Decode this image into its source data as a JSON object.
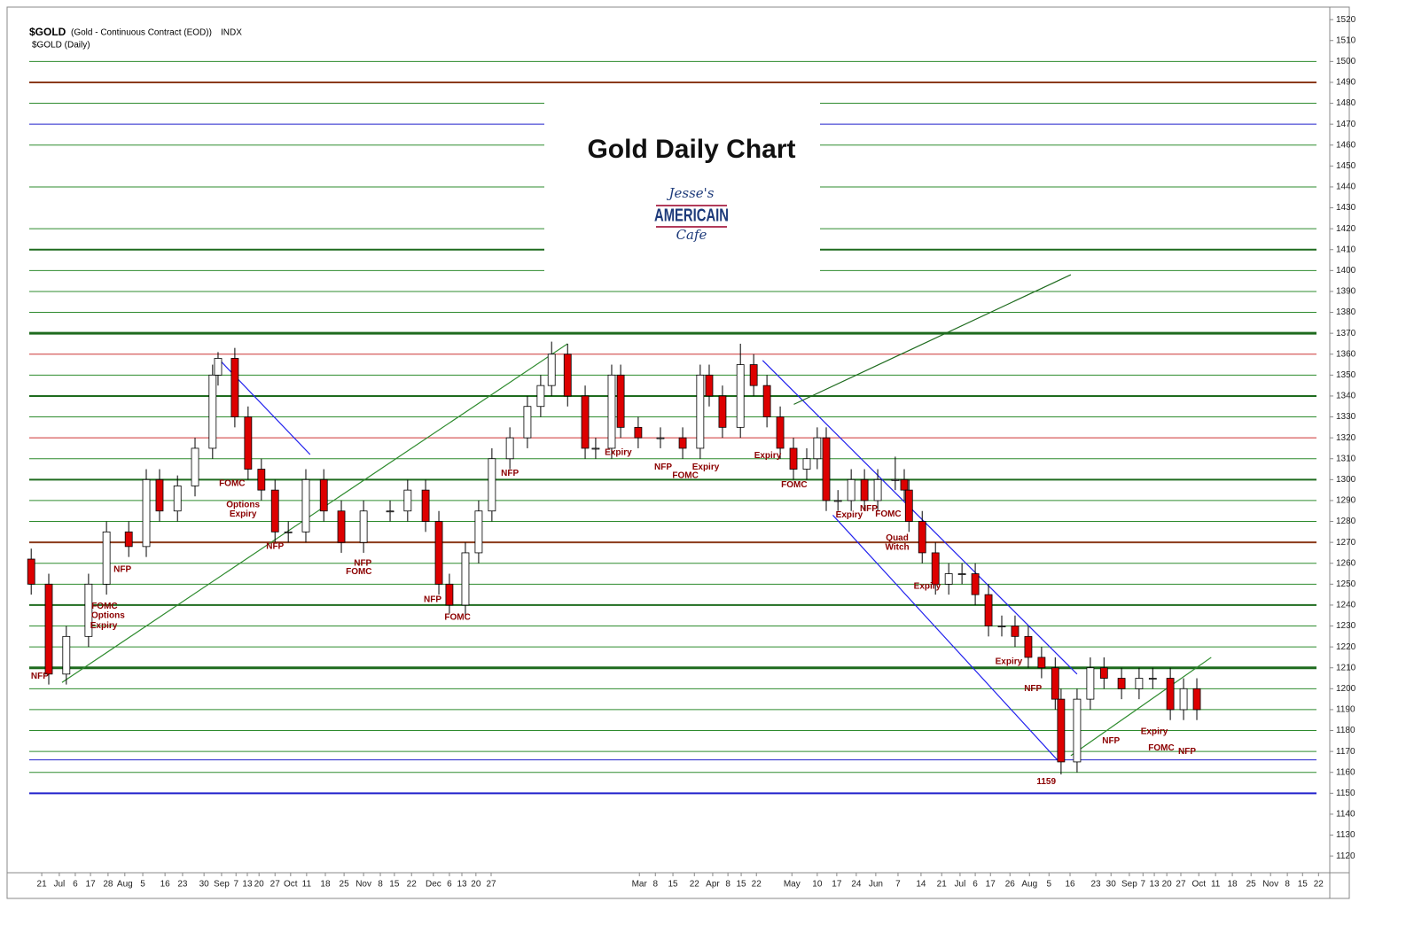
{
  "chart_data": {
    "type": "candlestick",
    "symbol": "$GOLD",
    "description": "(Gold - Continuous Contract (EOD))",
    "exchange": "INDX",
    "subtitle": "$GOLD (Daily)",
    "title": "Gold Daily Chart",
    "logo": {
      "top": "Jesse's",
      "middle": "AMERICAIN",
      "bottom": "Cafe"
    },
    "up_color": "#ffffff",
    "down_color": "#dd0000",
    "xlim": [
      0,
      332.7
    ],
    "ylim": [
      1112,
      1526
    ],
    "yticks": [
      1120,
      1130,
      1140,
      1150,
      1160,
      1170,
      1180,
      1190,
      1200,
      1210,
      1220,
      1230,
      1240,
      1250,
      1260,
      1270,
      1280,
      1290,
      1300,
      1310,
      1320,
      1330,
      1340,
      1350,
      1360,
      1370,
      1380,
      1390,
      1400,
      1410,
      1420,
      1430,
      1440,
      1450,
      1460,
      1470,
      1480,
      1490,
      1500,
      1510,
      1520
    ],
    "xticks": [
      {
        "value": 3.2,
        "label": "21"
      },
      {
        "value": 7.7,
        "label": "Jul"
      },
      {
        "value": 11.8,
        "label": "6"
      },
      {
        "value": 15.7,
        "label": "17"
      },
      {
        "value": 20.2,
        "label": "28"
      },
      {
        "value": 24.5,
        "label": "Aug"
      },
      {
        "value": 29.1,
        "label": "5"
      },
      {
        "value": 34.8,
        "label": "16"
      },
      {
        "value": 39.3,
        "label": "23"
      },
      {
        "value": 44.8,
        "label": "30"
      },
      {
        "value": 49.3,
        "label": "Sep"
      },
      {
        "value": 53,
        "label": "7"
      },
      {
        "value": 55.9,
        "label": "13"
      },
      {
        "value": 58.9,
        "label": "20"
      },
      {
        "value": 63,
        "label": "27"
      },
      {
        "value": 67,
        "label": "Oct"
      },
      {
        "value": 71.1,
        "label": "11"
      },
      {
        "value": 75.9,
        "label": "18"
      },
      {
        "value": 80.7,
        "label": "25"
      },
      {
        "value": 85.7,
        "label": "Nov"
      },
      {
        "value": 90,
        "label": "8"
      },
      {
        "value": 93.6,
        "label": "15"
      },
      {
        "value": 98,
        "label": "22"
      },
      {
        "value": 103.6,
        "label": "Dec"
      },
      {
        "value": 107.7,
        "label": "6"
      },
      {
        "value": 110.9,
        "label": "13"
      },
      {
        "value": 114.5,
        "label": "20"
      },
      {
        "value": 118.4,
        "label": "27"
      },
      {
        "value": 156.4,
        "label": "Mar"
      },
      {
        "value": 160.5,
        "label": "8"
      },
      {
        "value": 165,
        "label": "15"
      },
      {
        "value": 170.5,
        "label": "22"
      },
      {
        "value": 175.2,
        "label": "Apr"
      },
      {
        "value": 179.1,
        "label": "8"
      },
      {
        "value": 182.5,
        "label": "15"
      },
      {
        "value": 186.4,
        "label": "22"
      },
      {
        "value": 195.5,
        "label": "May"
      },
      {
        "value": 202,
        "label": "10"
      },
      {
        "value": 207,
        "label": "17"
      },
      {
        "value": 212,
        "label": "24"
      },
      {
        "value": 217,
        "label": "Jun"
      },
      {
        "value": 222.7,
        "label": "7"
      },
      {
        "value": 228.6,
        "label": "14"
      },
      {
        "value": 233.9,
        "label": "21"
      },
      {
        "value": 238.6,
        "label": "Jul"
      },
      {
        "value": 242.5,
        "label": "6"
      },
      {
        "value": 246.4,
        "label": "17"
      },
      {
        "value": 251.4,
        "label": "26"
      },
      {
        "value": 256.4,
        "label": "Aug"
      },
      {
        "value": 261.4,
        "label": "5"
      },
      {
        "value": 266.8,
        "label": "16"
      },
      {
        "value": 273.4,
        "label": "23"
      },
      {
        "value": 277.3,
        "label": "30"
      },
      {
        "value": 282,
        "label": "Sep"
      },
      {
        "value": 285.5,
        "label": "7"
      },
      {
        "value": 288.4,
        "label": "13"
      },
      {
        "value": 291.6,
        "label": "20"
      },
      {
        "value": 295.2,
        "label": "27"
      },
      {
        "value": 299.8,
        "label": "Oct"
      },
      {
        "value": 304.1,
        "label": "11"
      },
      {
        "value": 308.4,
        "label": "18"
      },
      {
        "value": 313.2,
        "label": "25"
      },
      {
        "value": 318.2,
        "label": "Nov"
      },
      {
        "value": 322.5,
        "label": "8"
      },
      {
        "value": 326.4,
        "label": "15"
      },
      {
        "value": 330.5,
        "label": "22"
      }
    ],
    "x": [
      0.5,
      5,
      9.5,
      15.2,
      19.8,
      25.5,
      30,
      33.4,
      38,
      42.5,
      47,
      48.4,
      52.7,
      56.1,
      59.5,
      63,
      66.4,
      70.9,
      75.5,
      80,
      85.7,
      92.5,
      97,
      101.6,
      105,
      107.7,
      111.8,
      115.2,
      118.6,
      123.2,
      127.7,
      131.1,
      133.9,
      138,
      142.5,
      145.2,
      149.3,
      151.6,
      156.1,
      161.8,
      167.5,
      172,
      174.3,
      177.7,
      182.3,
      185.7,
      189.1,
      192.5,
      195.9,
      199.3,
      202,
      204.3,
      207.3,
      210.7,
      214.1,
      217.5,
      222,
      224.3,
      225.5,
      228.9,
      232.3,
      235.7,
      239.1,
      242.5,
      245.9,
      249.3,
      252.7,
      256.1,
      259.5,
      263,
      264.5,
      268.6,
      272,
      275.5,
      280,
      284.5,
      288,
      292.5,
      295.9,
      299.3
    ],
    "open": [
      1262,
      1250,
      1207,
      1225,
      1250,
      1275,
      1268,
      1300,
      1285,
      1297,
      1315,
      1350,
      1358,
      1330,
      1305,
      1295,
      1275,
      1275,
      1300,
      1285,
      1270,
      1285,
      1285,
      1295,
      1280,
      1250,
      1240,
      1265,
      1285,
      1310,
      1320,
      1335,
      1345,
      1360,
      1340,
      1315,
      1315,
      1350,
      1325,
      1320,
      1320,
      1315,
      1350,
      1340,
      1325,
      1355,
      1345,
      1330,
      1315,
      1305,
      1310,
      1320,
      1290,
      1290,
      1300,
      1290,
      1300,
      1300,
      1295,
      1280,
      1265,
      1250,
      1255,
      1255,
      1245,
      1230,
      1230,
      1225,
      1215,
      1210,
      1195,
      1165,
      1195,
      1210,
      1205,
      1200,
      1205,
      1205,
      1190,
      1200
    ],
    "high": [
      1267,
      1255,
      1230,
      1255,
      1280,
      1280,
      1305,
      1305,
      1302,
      1320,
      1355,
      1361,
      1363,
      1335,
      1310,
      1300,
      1280,
      1305,
      1305,
      1290,
      1290,
      1290,
      1300,
      1300,
      1285,
      1255,
      1270,
      1290,
      1315,
      1325,
      1340,
      1350,
      1366,
      1365,
      1345,
      1320,
      1355,
      1355,
      1330,
      1325,
      1325,
      1355,
      1355,
      1345,
      1365,
      1360,
      1350,
      1335,
      1320,
      1315,
      1325,
      1325,
      1295,
      1305,
      1305,
      1305,
      1311,
      1305,
      1300,
      1285,
      1270,
      1260,
      1260,
      1260,
      1250,
      1235,
      1235,
      1230,
      1220,
      1215,
      1200,
      1200,
      1215,
      1215,
      1210,
      1210,
      1210,
      1210,
      1205,
      1205
    ],
    "low": [
      1245,
      1202,
      1202,
      1220,
      1245,
      1263,
      1263,
      1280,
      1280,
      1292,
      1310,
      1345,
      1325,
      1300,
      1290,
      1270,
      1270,
      1270,
      1280,
      1265,
      1265,
      1280,
      1280,
      1275,
      1245,
      1236,
      1235,
      1260,
      1280,
      1305,
      1315,
      1330,
      1340,
      1335,
      1310,
      1310,
      1310,
      1320,
      1315,
      1315,
      1310,
      1310,
      1335,
      1320,
      1320,
      1340,
      1325,
      1310,
      1300,
      1300,
      1305,
      1285,
      1285,
      1285,
      1285,
      1285,
      1295,
      1290,
      1275,
      1260,
      1245,
      1245,
      1250,
      1240,
      1225,
      1225,
      1220,
      1210,
      1205,
      1190,
      1159,
      1160,
      1190,
      1200,
      1195,
      1195,
      1200,
      1185,
      1185,
      1185
    ],
    "close": [
      1250,
      1207,
      1225,
      1250,
      1275,
      1268,
      1300,
      1285,
      1297,
      1315,
      1350,
      1358,
      1330,
      1305,
      1295,
      1275,
      1275,
      1300,
      1285,
      1270,
      1285,
      1285,
      1295,
      1280,
      1250,
      1240,
      1265,
      1285,
      1310,
      1320,
      1335,
      1345,
      1360,
      1340,
      1315,
      1315,
      1350,
      1325,
      1320,
      1320,
      1315,
      1350,
      1340,
      1325,
      1355,
      1345,
      1330,
      1315,
      1305,
      1310,
      1320,
      1290,
      1290,
      1300,
      1290,
      1300,
      1300,
      1295,
      1280,
      1265,
      1250,
      1255,
      1255,
      1245,
      1230,
      1230,
      1225,
      1215,
      1210,
      1195,
      1165,
      1195,
      1210,
      1205,
      1200,
      1205,
      1205,
      1190,
      1200,
      1190
    ],
    "levels": [
      {
        "value": 1500,
        "color": "#2e8b2e",
        "width": 1
      },
      {
        "value": 1490,
        "color": "#8b3a1a",
        "width": 2
      },
      {
        "value": 1480,
        "color": "#2e8b2e",
        "width": 1
      },
      {
        "value": 1470,
        "color": "#2222cc",
        "width": 1
      },
      {
        "value": 1460,
        "color": "#2e8b2e",
        "width": 1
      },
      {
        "value": 1440,
        "color": "#2e8b2e",
        "width": 1
      },
      {
        "value": 1420,
        "color": "#2e8b2e",
        "width": 1
      },
      {
        "value": 1410,
        "color": "#1e6b1e",
        "width": 2
      },
      {
        "value": 1400,
        "color": "#2e8b2e",
        "width": 1
      },
      {
        "value": 1390,
        "color": "#2e8b2e",
        "width": 1
      },
      {
        "value": 1380,
        "color": "#2e8b2e",
        "width": 1
      },
      {
        "value": 1370,
        "color": "#1e6b1e",
        "width": 3
      },
      {
        "value": 1360,
        "color": "#cc3333",
        "width": 1
      },
      {
        "value": 1350,
        "color": "#2e8b2e",
        "width": 1
      },
      {
        "value": 1340,
        "color": "#1e6b1e",
        "width": 2
      },
      {
        "value": 1330,
        "color": "#2e8b2e",
        "width": 1
      },
      {
        "value": 1320,
        "color": "#cc3333",
        "width": 1
      },
      {
        "value": 1310,
        "color": "#2e8b2e",
        "width": 1
      },
      {
        "value": 1300,
        "color": "#1e6b1e",
        "width": 2
      },
      {
        "value": 1290,
        "color": "#2e8b2e",
        "width": 1
      },
      {
        "value": 1280,
        "color": "#2e8b2e",
        "width": 1
      },
      {
        "value": 1270,
        "color": "#8b3a1a",
        "width": 2
      },
      {
        "value": 1260,
        "color": "#2e8b2e",
        "width": 1
      },
      {
        "value": 1250,
        "color": "#2e8b2e",
        "width": 1
      },
      {
        "value": 1240,
        "color": "#1e6b1e",
        "width": 2
      },
      {
        "value": 1230,
        "color": "#2e8b2e",
        "width": 1
      },
      {
        "value": 1220,
        "color": "#2e8b2e",
        "width": 1
      },
      {
        "value": 1210,
        "color": "#1e6b1e",
        "width": 3
      },
      {
        "value": 1200,
        "color": "#2e8b2e",
        "width": 1
      },
      {
        "value": 1190,
        "color": "#2e8b2e",
        "width": 1
      },
      {
        "value": 1180,
        "color": "#2e8b2e",
        "width": 1
      },
      {
        "value": 1170,
        "color": "#2e8b2e",
        "width": 1
      },
      {
        "value": 1166,
        "color": "#2222cc",
        "width": 1
      },
      {
        "value": 1160,
        "color": "#2e8b2e",
        "width": 1
      },
      {
        "value": 1150,
        "color": "#2222cc",
        "width": 2
      }
    ],
    "trendlines": [
      {
        "x": [
          48.4,
          72
        ],
        "y": [
          1358,
          1312
        ],
        "color": "#2222ee"
      },
      {
        "x": [
          188,
          268.6
        ],
        "y": [
          1357,
          1207
        ],
        "color": "#2222ee"
      },
      {
        "x": [
          206,
          264
        ],
        "y": [
          1283,
          1165
        ],
        "color": "#2222ee"
      },
      {
        "x": [
          8.4,
          138
        ],
        "y": [
          1203,
          1365
        ],
        "color": "#2e8b2e"
      },
      {
        "x": [
          196,
          267
        ],
        "y": [
          1336,
          1398
        ],
        "color": "#1e6b1e"
      },
      {
        "x": [
          267,
          303
        ],
        "y": [
          1168,
          1215
        ],
        "color": "#2e8b2e"
      }
    ],
    "annotations": [
      {
        "text": "NFP",
        "x": 2.7,
        "y": 1206
      },
      {
        "text": "FOMC",
        "x": 19.3,
        "y": 1239.5
      },
      {
        "text": "Options",
        "x": 20.2,
        "y": 1235
      },
      {
        "text": "Expiry",
        "x": 19.1,
        "y": 1230
      },
      {
        "text": "NFP",
        "x": 23.9,
        "y": 1257
      },
      {
        "text": "FOMC",
        "x": 52,
        "y": 1298
      },
      {
        "text": "Options",
        "x": 54.8,
        "y": 1288
      },
      {
        "text": "Expiry",
        "x": 54.8,
        "y": 1283.5
      },
      {
        "text": "NFP",
        "x": 63,
        "y": 1268
      },
      {
        "text": "NFP",
        "x": 85.5,
        "y": 1260
      },
      {
        "text": "FOMC",
        "x": 84.5,
        "y": 1256
      },
      {
        "text": "NFP",
        "x": 103.4,
        "y": 1242.5
      },
      {
        "text": "FOMC",
        "x": 109.8,
        "y": 1234
      },
      {
        "text": "NFP",
        "x": 123.2,
        "y": 1303
      },
      {
        "text": "Expiry",
        "x": 151,
        "y": 1313
      },
      {
        "text": "NFP",
        "x": 162.5,
        "y": 1306
      },
      {
        "text": "FOMC",
        "x": 168.2,
        "y": 1302
      },
      {
        "text": "Expiry",
        "x": 173.4,
        "y": 1306
      },
      {
        "text": "Expiry",
        "x": 189.3,
        "y": 1311.5
      },
      {
        "text": "FOMC",
        "x": 196.1,
        "y": 1297.5
      },
      {
        "text": "NFP",
        "x": 215.2,
        "y": 1286
      },
      {
        "text": "FOMC",
        "x": 220.2,
        "y": 1283.5
      },
      {
        "text": "Expiry",
        "x": 210.2,
        "y": 1283
      },
      {
        "text": "Quad",
        "x": 222.5,
        "y": 1272
      },
      {
        "text": "Witch",
        "x": 222.5,
        "y": 1267.5
      },
      {
        "text": "Expiry",
        "x": 230.2,
        "y": 1249
      },
      {
        "text": "Expiry",
        "x": 251.1,
        "y": 1213
      },
      {
        "text": "NFP",
        "x": 257.3,
        "y": 1200
      },
      {
        "text": "1159",
        "x": 260.7,
        "y": 1155.5
      },
      {
        "text": "NFP",
        "x": 277.3,
        "y": 1175
      },
      {
        "text": "Expiry",
        "x": 288.4,
        "y": 1179.5
      },
      {
        "text": "FOMC",
        "x": 290.2,
        "y": 1171.5
      },
      {
        "text": "NFP",
        "x": 296.8,
        "y": 1170
      }
    ]
  }
}
